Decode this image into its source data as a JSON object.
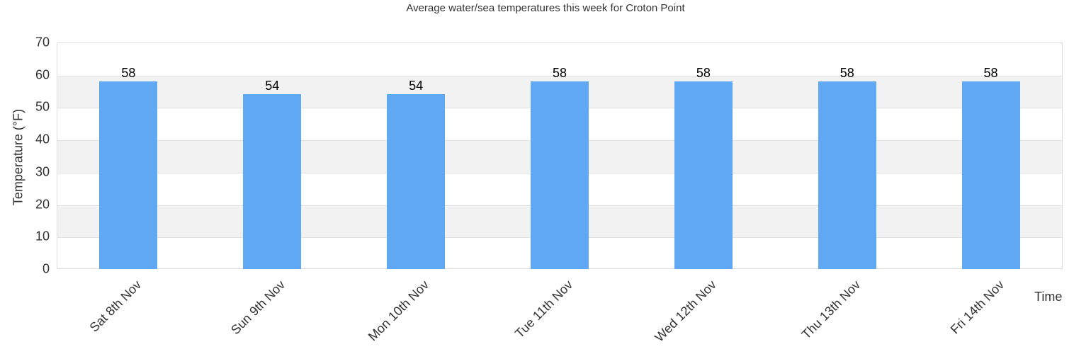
{
  "chart_data": {
    "type": "bar",
    "title": "Average water/sea temperatures this week for Croton Point",
    "xlabel": "Time",
    "ylabel": "Temperature (°F)",
    "ylim": [
      0,
      70
    ],
    "yticks": [
      0,
      10,
      20,
      30,
      40,
      50,
      60,
      70
    ],
    "grid": true,
    "legend": null,
    "bar_color": "#60a8f3",
    "categories": [
      "Sat 8th Nov",
      "Sun 9th Nov",
      "Mon 10th Nov",
      "Tue 11th Nov",
      "Wed 12th Nov",
      "Thu 13th Nov",
      "Fri 14th Nov"
    ],
    "values": [
      58,
      54,
      54,
      58,
      58,
      58,
      58
    ]
  }
}
